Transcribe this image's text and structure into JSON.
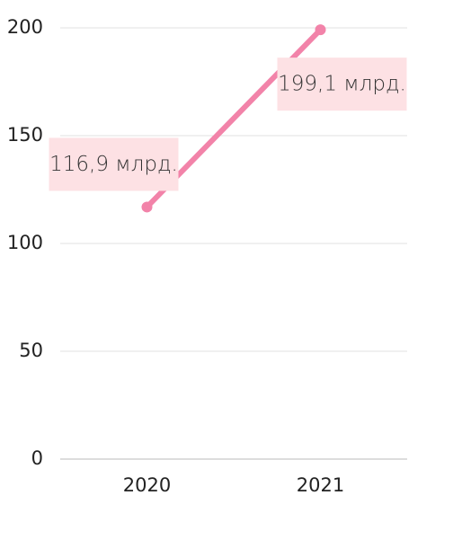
{
  "chart_data": {
    "type": "line",
    "categories": [
      "2020",
      "2021"
    ],
    "values": [
      116.9,
      199.1
    ],
    "value_labels": [
      "116,9 млрд.",
      "199,1 млрд."
    ],
    "color": "#f283a9",
    "label_background": "#fde1e4",
    "ylim": [
      0,
      200
    ],
    "yticks": [
      0,
      50,
      100,
      150,
      200
    ],
    "grid": true
  }
}
